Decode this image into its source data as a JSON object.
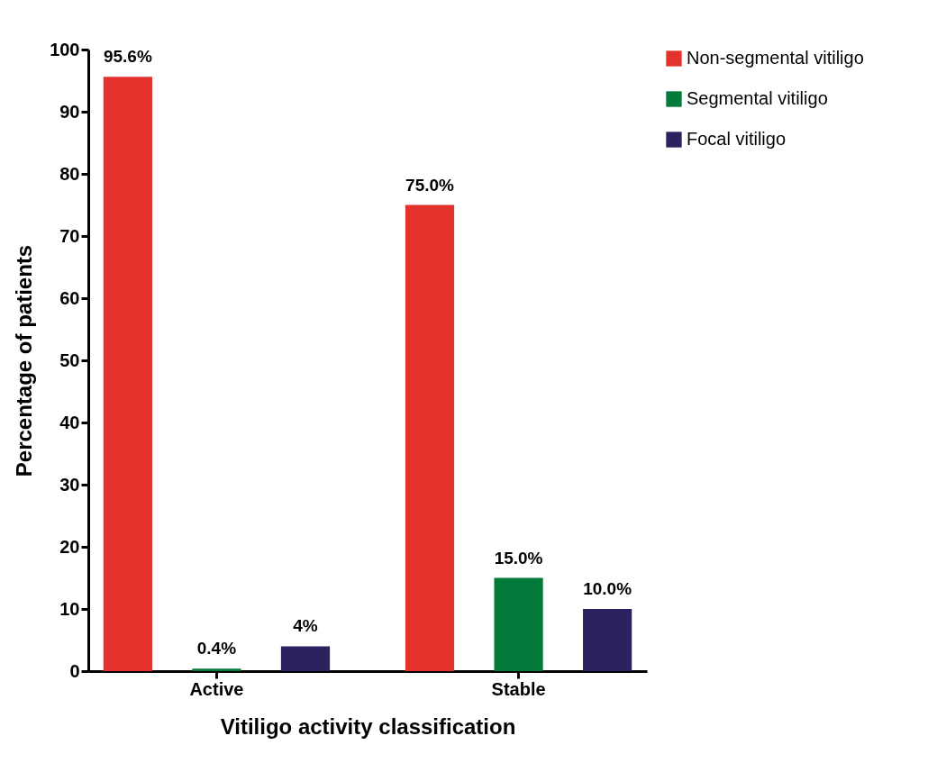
{
  "chart_data": {
    "type": "bar",
    "xlabel": "Vitiligo activity classification",
    "ylabel": "Percentage of patients",
    "categories": [
      "Active",
      "Stable"
    ],
    "series": [
      {
        "name": "Non-segmental vitiligo",
        "color": "#e3322b",
        "values": [
          95.6,
          75.0
        ],
        "value_labels": [
          "95.6%",
          "75.0%"
        ]
      },
      {
        "name": "Segmental vitiligo",
        "color": "#037a3a",
        "values": [
          0.4,
          15.0
        ],
        "value_labels": [
          "0.4%",
          "15.0%"
        ]
      },
      {
        "name": "Focal vitiligo",
        "color": "#2e2160",
        "values": [
          4,
          10.0
        ],
        "value_labels": [
          "4%",
          "10.0%"
        ]
      }
    ],
    "ylim": [
      0,
      100
    ],
    "yticks": [
      0,
      10,
      20,
      30,
      40,
      50,
      60,
      70,
      80,
      90,
      100
    ],
    "grid": false,
    "legend": "right"
  }
}
